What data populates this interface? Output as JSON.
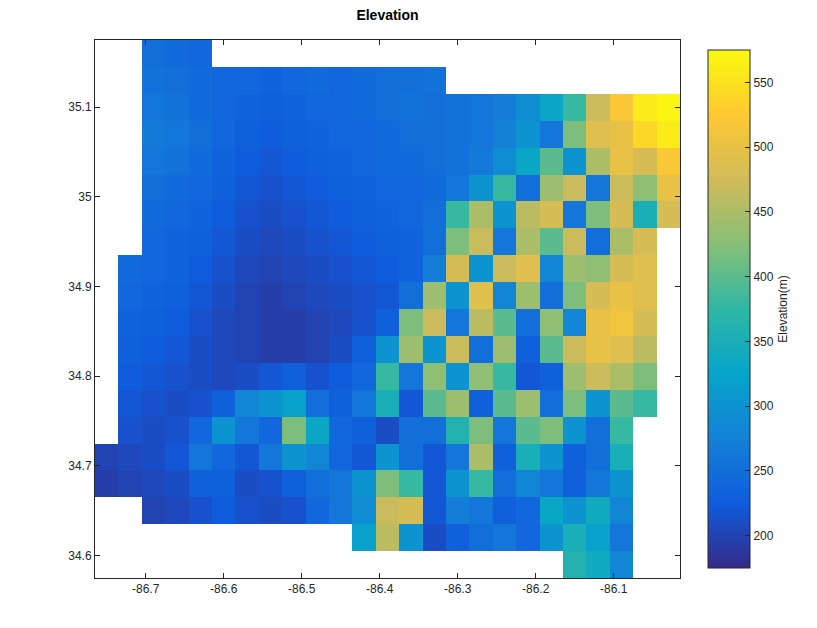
{
  "chart_data": {
    "type": "heatmap",
    "title": "Elevation",
    "x": [
      -86.75,
      -86.72,
      -86.69,
      -86.66,
      -86.63,
      -86.6,
      -86.57,
      -86.54,
      -86.51,
      -86.48,
      -86.45,
      -86.42,
      -86.39,
      -86.36,
      -86.33,
      -86.3,
      -86.27,
      -86.24,
      -86.21,
      -86.18,
      -86.15,
      -86.12,
      -86.09,
      -86.06,
      -86.03
    ],
    "y": [
      34.59,
      34.62,
      34.65,
      34.68,
      34.71,
      34.74,
      34.77,
      34.8,
      34.83,
      34.86,
      34.89,
      34.92,
      34.95,
      34.98,
      35.01,
      35.04,
      35.07,
      35.1,
      35.13,
      35.16
    ],
    "z": [
      [
        null,
        null,
        null,
        null,
        null,
        null,
        null,
        null,
        null,
        null,
        null,
        null,
        null,
        null,
        null,
        null,
        null,
        null,
        null,
        null,
        360,
        340,
        280,
        null,
        null
      ],
      [
        null,
        null,
        null,
        null,
        null,
        null,
        null,
        null,
        null,
        null,
        null,
        320,
        460,
        300,
        210,
        230,
        250,
        260,
        240,
        300,
        350,
        320,
        260,
        null,
        null
      ],
      [
        null,
        null,
        200,
        205,
        215,
        225,
        215,
        210,
        215,
        240,
        260,
        290,
        470,
        480,
        220,
        270,
        260,
        230,
        240,
        330,
        300,
        340,
        280,
        null,
        null
      ],
      [
        195,
        200,
        205,
        210,
        230,
        230,
        210,
        215,
        230,
        250,
        260,
        300,
        420,
        380,
        220,
        300,
        380,
        250,
        280,
        260,
        230,
        260,
        300,
        null,
        null
      ],
      [
        200,
        205,
        210,
        220,
        260,
        240,
        220,
        260,
        300,
        280,
        240,
        220,
        300,
        250,
        220,
        260,
        450,
        230,
        350,
        300,
        230,
        250,
        350,
        null,
        null
      ],
      [
        null,
        215,
        210,
        215,
        240,
        300,
        260,
        240,
        420,
        330,
        240,
        230,
        210,
        250,
        250,
        360,
        420,
        260,
        400,
        420,
        300,
        250,
        380,
        null,
        null
      ],
      [
        null,
        220,
        215,
        210,
        215,
        230,
        280,
        300,
        320,
        250,
        230,
        260,
        350,
        220,
        400,
        440,
        230,
        400,
        440,
        250,
        420,
        300,
        400,
        380,
        null
      ],
      [
        null,
        225,
        220,
        215,
        210,
        205,
        210,
        220,
        230,
        215,
        225,
        240,
        380,
        260,
        430,
        300,
        430,
        380,
        220,
        230,
        440,
        470,
        450,
        420,
        null
      ],
      [
        null,
        230,
        225,
        220,
        210,
        205,
        200,
        195,
        195,
        200,
        210,
        230,
        300,
        440,
        300,
        470,
        250,
        440,
        230,
        400,
        470,
        500,
        490,
        460,
        null
      ],
      [
        null,
        235,
        230,
        225,
        215,
        205,
        200,
        195,
        195,
        200,
        205,
        215,
        230,
        420,
        470,
        260,
        460,
        400,
        250,
        430,
        280,
        500,
        510,
        480,
        null
      ],
      [
        null,
        240,
        235,
        230,
        220,
        210,
        200,
        195,
        200,
        205,
        210,
        215,
        220,
        250,
        440,
        300,
        490,
        280,
        440,
        250,
        420,
        480,
        500,
        490,
        null
      ],
      [
        null,
        245,
        240,
        235,
        225,
        215,
        205,
        200,
        205,
        210,
        215,
        220,
        225,
        235,
        270,
        480,
        300,
        470,
        490,
        280,
        440,
        430,
        480,
        490,
        null
      ],
      [
        null,
        null,
        240,
        235,
        230,
        220,
        210,
        205,
        210,
        215,
        220,
        225,
        230,
        235,
        250,
        420,
        470,
        260,
        450,
        400,
        470,
        250,
        450,
        480,
        null
      ],
      [
        null,
        null,
        245,
        240,
        235,
        225,
        215,
        210,
        215,
        220,
        225,
        230,
        235,
        240,
        250,
        380,
        450,
        300,
        460,
        480,
        260,
        420,
        480,
        350,
        480
      ],
      [
        null,
        null,
        250,
        245,
        240,
        230,
        220,
        215,
        220,
        225,
        230,
        235,
        240,
        240,
        245,
        260,
        300,
        380,
        250,
        440,
        470,
        260,
        470,
        430,
        500
      ],
      [
        null,
        null,
        260,
        255,
        245,
        235,
        225,
        220,
        225,
        230,
        235,
        240,
        245,
        245,
        250,
        255,
        265,
        290,
        330,
        400,
        300,
        450,
        500,
        480,
        520
      ],
      [
        null,
        null,
        265,
        260,
        250,
        240,
        230,
        225,
        230,
        235,
        240,
        240,
        245,
        250,
        250,
        255,
        260,
        275,
        300,
        260,
        420,
        490,
        500,
        540,
        560
      ],
      [
        null,
        null,
        260,
        255,
        245,
        240,
        235,
        230,
        235,
        240,
        240,
        245,
        250,
        255,
        250,
        255,
        260,
        270,
        290,
        330,
        380,
        470,
        520,
        560,
        570
      ],
      [
        null,
        null,
        255,
        250,
        245,
        240,
        240,
        235,
        240,
        245,
        240,
        245,
        250,
        250,
        255,
        null,
        null,
        null,
        null,
        null,
        null,
        null,
        null,
        null,
        null
      ],
      [
        null,
        null,
        250,
        245,
        240,
        null,
        null,
        null,
        null,
        null,
        null,
        null,
        null,
        null,
        null,
        null,
        null,
        null,
        null,
        null,
        null,
        null,
        null,
        null,
        null
      ]
    ],
    "xlim": [
      -86.765,
      -86.015
    ],
    "ylim": [
      34.575,
      35.175
    ],
    "xticks": [
      -86.7,
      -86.6,
      -86.5,
      -86.4,
      -86.3,
      -86.2,
      -86.1
    ],
    "yticks": [
      34.6,
      34.7,
      34.8,
      34.9,
      35,
      35.1
    ],
    "colorbar": {
      "title": "Elevation(m)",
      "range": [
        175,
        575
      ],
      "ticks": [
        200,
        250,
        300,
        350,
        400,
        450,
        500,
        550
      ]
    },
    "grid": false
  }
}
